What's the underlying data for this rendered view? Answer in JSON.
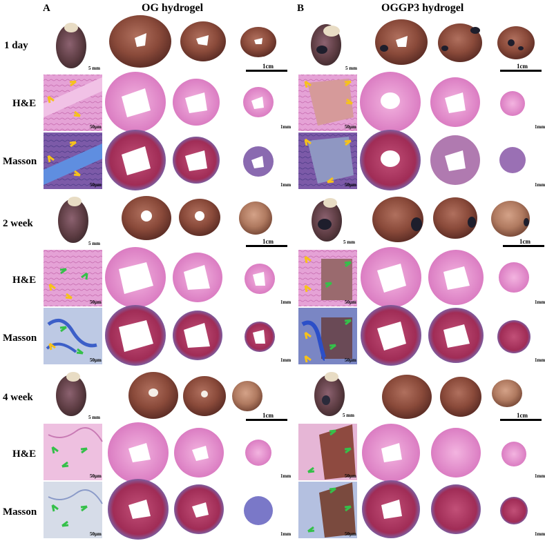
{
  "panels": {
    "a": {
      "letter": "A",
      "title": "OG hydrogel"
    },
    "b": {
      "letter": "B",
      "title": "OGGP3 hydrogel"
    }
  },
  "timepoints": [
    {
      "label": "1 day"
    },
    {
      "label": "2 week"
    },
    {
      "label": "4 week"
    }
  ],
  "stains": {
    "he": "H&E",
    "masson": "Masson"
  },
  "scale_bars": {
    "whole_heart": "5 mm",
    "slices": "1cm",
    "section": "1mm",
    "micrograph": "50μm"
  },
  "colors": {
    "heart_tissue": "#8a4a3a",
    "he_pink": "#e98fcf",
    "masson_red": "#b0365e",
    "masson_blue": "#5c7fcf",
    "hydrogel_dark": "#2b2a3a",
    "arrow_yellow": "#f6c21c",
    "arrow_green": "#35c04a"
  }
}
